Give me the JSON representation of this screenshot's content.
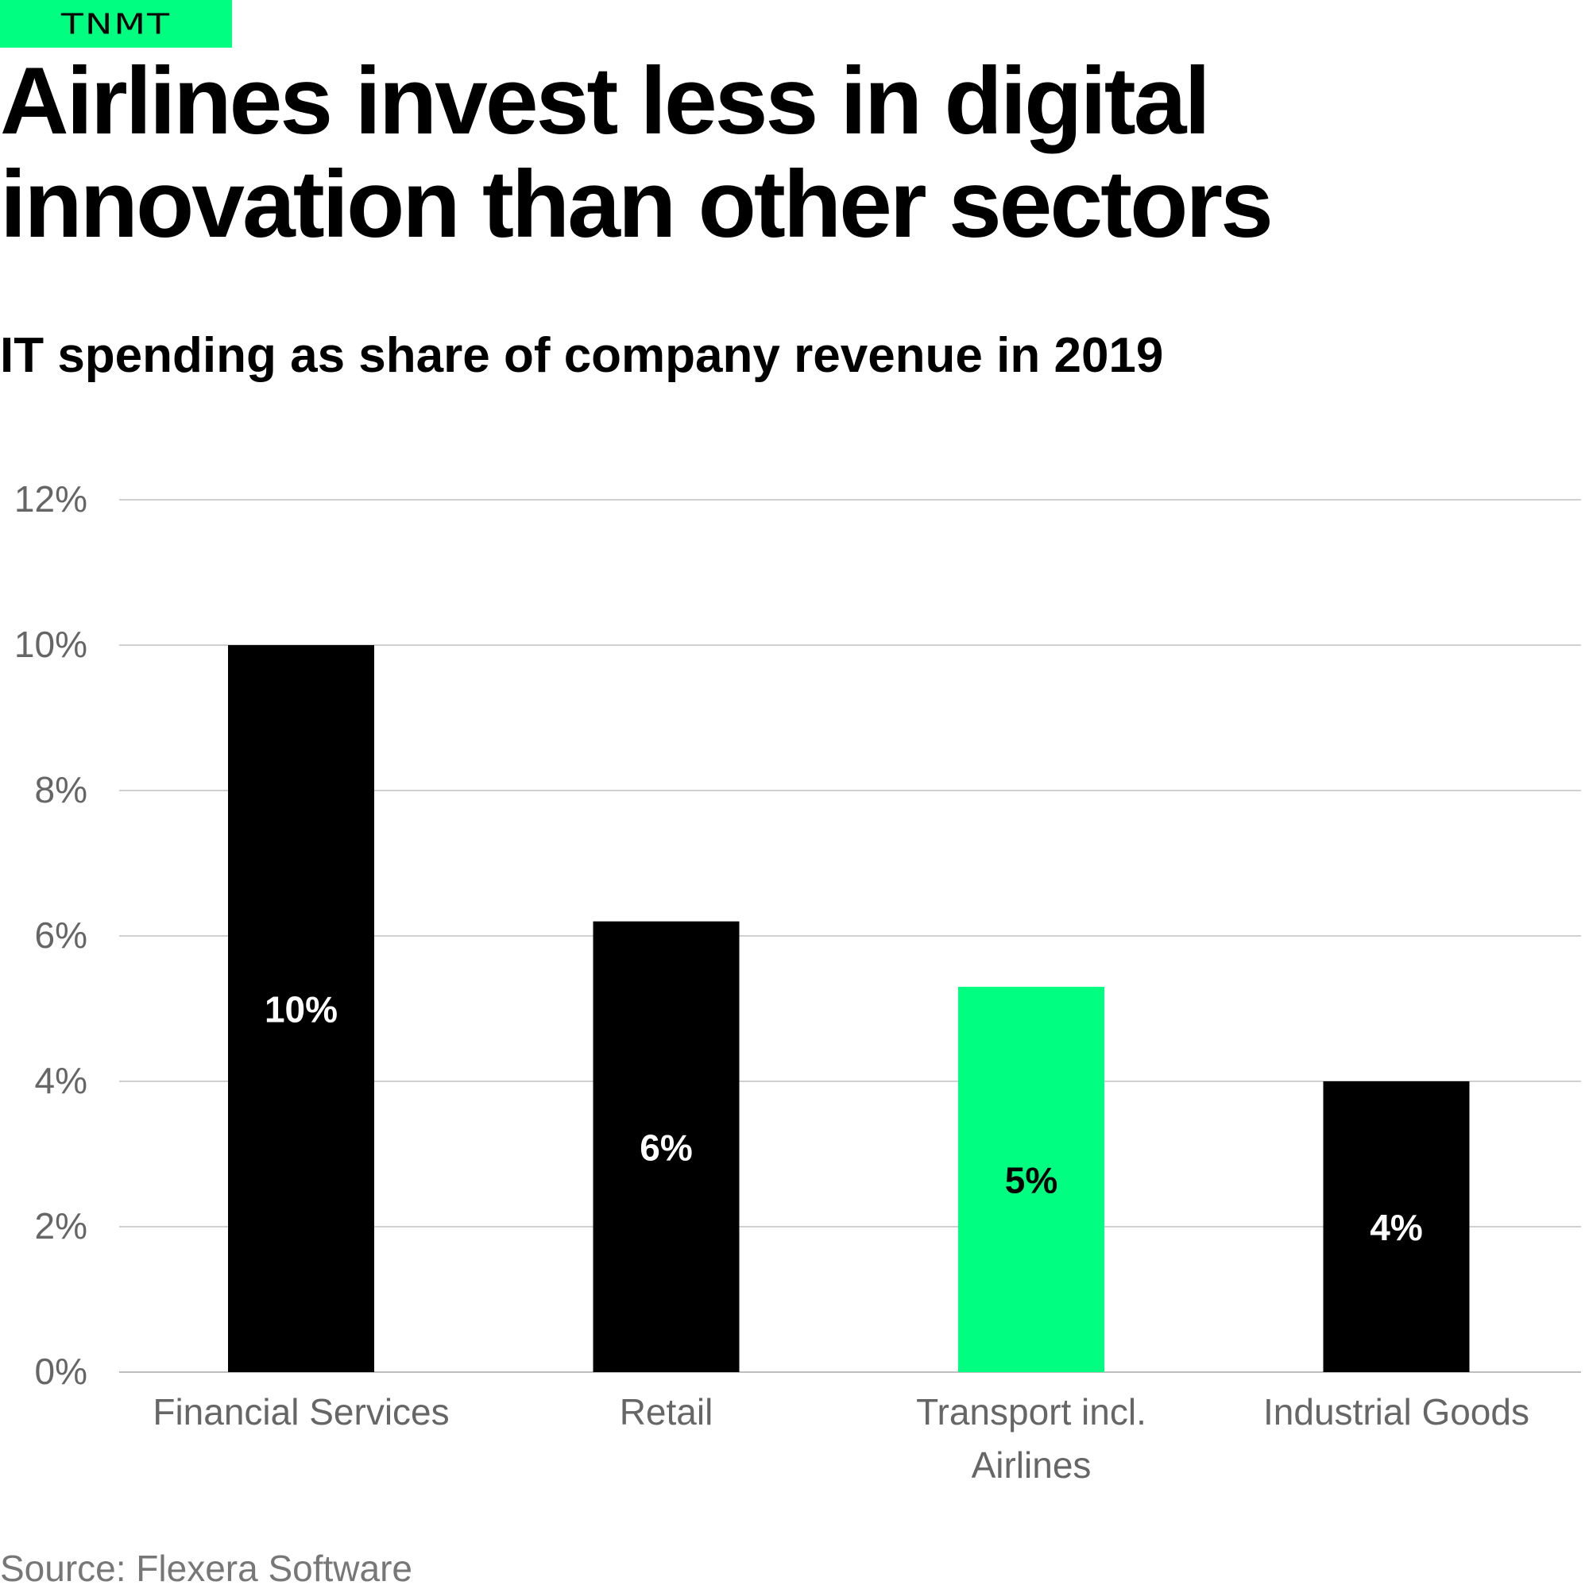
{
  "brand": {
    "logo_text": "TNMT"
  },
  "headline": "Airlines invest less in digital innovation than other sectors",
  "source": "Source: Flexera Software",
  "colors": {
    "accent": "#00ff80",
    "bar_default": "#000000",
    "grid": "#d0d0d0",
    "axis_text": "#666666",
    "source_text": "#777777"
  },
  "chart_data": {
    "type": "bar",
    "title": "IT spending as share of company revenue in 2019",
    "categories": [
      [
        "Financial Services"
      ],
      [
        "Retail"
      ],
      [
        "Transport incl.",
        "Airlines"
      ],
      [
        "Industrial Goods"
      ]
    ],
    "values": [
      10,
      6.2,
      5.3,
      4
    ],
    "data_labels": [
      "10%",
      "6%",
      "5%",
      "4%"
    ],
    "highlight_index": 2,
    "ylim": [
      0,
      12
    ],
    "yticks": [
      0,
      2,
      4,
      6,
      8,
      10,
      12
    ],
    "ytick_labels": [
      "0%",
      "2%",
      "4%",
      "6%",
      "8%",
      "10%",
      "12%"
    ],
    "grid": true,
    "xlabel": "",
    "ylabel": ""
  }
}
